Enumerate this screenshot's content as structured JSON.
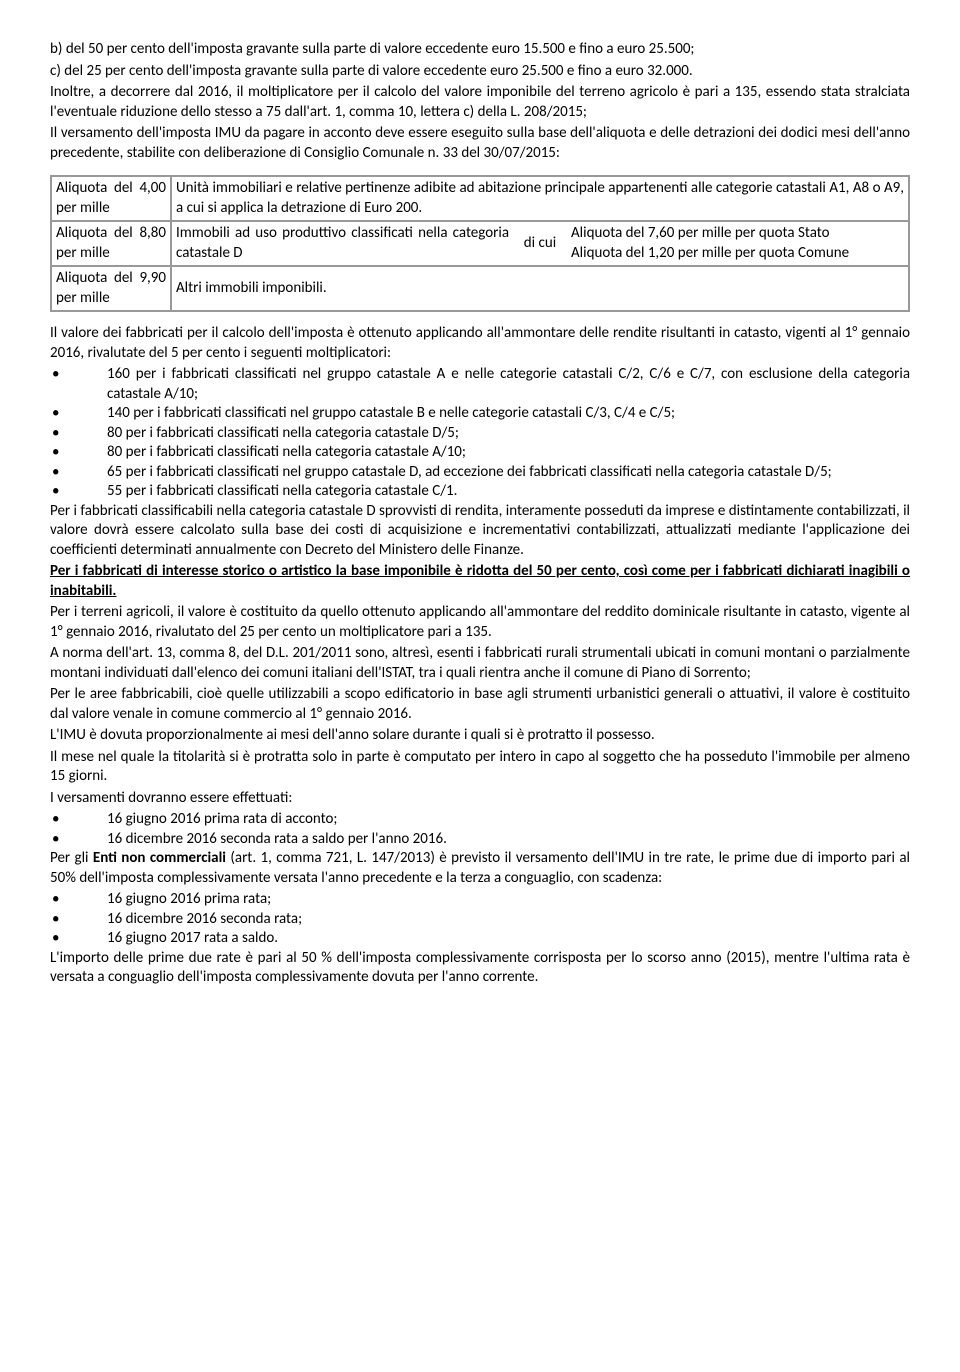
{
  "intro": {
    "b": "b) del 50 per cento dell'imposta gravante sulla parte di valore eccedente euro 15.500 e fino a euro 25.500;",
    "c": "c) del 25 per cento dell'imposta gravante sulla parte di valore eccedente euro 25.500 e fino a euro 32.000.",
    "p1": "Inoltre, a decorrere dal 2016, il moltiplicatore per il calcolo del valore imponibile del terreno agricolo è pari a 135, essendo stata stralciata l'eventuale riduzione dello stesso a 75 dall'art. 1, comma 10, lettera c) della L. 208/2015;",
    "p2": "Il versamento dell'imposta IMU da pagare in acconto deve essere eseguito sulla base dell'aliquota e delle detrazioni dei dodici mesi dell'anno precedente, stabilite con deliberazione di Consiglio Comunale n. 33 del 30/07/2015:"
  },
  "table": {
    "r1": {
      "label": "Aliquota del 4,00 per mille",
      "desc": "Unità immobiliari e relative pertinenze adibite ad abitazione principale appartenenti alle categorie catastali A1, A8 o A9, a cui si applica la detrazione di Euro 200."
    },
    "r2": {
      "label": "Aliquota del 8,80 per mille",
      "c1": "Immobili ad uso produttivo classificati nella categoria catastale D",
      "c2": "di cui",
      "c3a": "Aliquota del 7,60 per mille per quota Stato",
      "c3b": "Aliquota del 1,20 per mille per quota Comune"
    },
    "r3": {
      "label": "Aliquota del 9,90 per mille",
      "desc": "Altri immobili imponibili."
    }
  },
  "body": {
    "p3": "Il valore dei fabbricati per il calcolo dell'imposta è ottenuto applicando all'ammontare delle rendite risultanti in catasto, vigenti al 1° gennaio 2016, rivalutate del 5 per cento i seguenti moltiplicatori:",
    "b1": "160 per i fabbricati classificati nel gruppo catastale A e nelle categorie catastali C/2, C/6 e C/7, con esclusione della categoria catastale A/10;",
    "b2": "140 per i fabbricati classificati nel gruppo catastale B e nelle categorie catastali C/3, C/4 e C/5;",
    "b3": "80 per i fabbricati classificati nella categoria catastale D/5;",
    "b4": "80 per i fabbricati classificati nella categoria catastale A/10;",
    "b5": "65 per i fabbricati classificati nel gruppo catastale D, ad eccezione dei fabbricati classificati nella categoria catastale D/5;",
    "b6": "55 per i fabbricati classificati nella categoria catastale C/1.",
    "p4": "Per i fabbricati classificabili nella categoria catastale D sprovvisti di rendita, interamente posseduti da imprese e distintamente contabilizzati, il valore dovrà essere calcolato sulla base dei costi di acquisizione e incrementativi contabilizzati, attualizzati mediante l'applicazione dei coefficienti determinati annualmente con Decreto del Ministero delle Finanze.",
    "p5": "Per i fabbricati di interesse storico o artistico la base imponibile è ridotta del 50 per cento, così come per i fabbricati dichiarati inagibili o inabitabili.",
    "p6": "Per i terreni agricoli, il valore è costituito da quello ottenuto applicando all'ammontare del reddito dominicale risultante in catasto, vigente al 1° gennaio 2016, rivalutato del 25 per cento un moltiplicatore pari a 135.",
    "p7": "A norma dell'art. 13, comma 8, del D.L. 201/2011 sono, altresì, esenti i fabbricati rurali strumentali ubicati in comuni montani o parzialmente montani individuati dall'elenco dei comuni italiani dell'ISTAT, tra i quali rientra anche il comune di Piano di Sorrento;",
    "p8": "Per le aree fabbricabili, cioè quelle utilizzabili a scopo edificatorio in base agli strumenti urbanistici generali o attuativi, il valore è costituito dal valore venale in comune commercio al 1° gennaio 2016.",
    "p9": "L'IMU è dovuta proporzionalmente ai mesi dell'anno solare durante i quali si è protratto il possesso.",
    "p10": "Il mese nel quale la titolarità si è protratta solo in parte è computato per intero in capo al soggetto che ha posseduto l'immobile per almeno 15 giorni.",
    "p11": "I versamenti dovranno essere effettuati:",
    "b7": "16 giugno 2016 prima rata di acconto;",
    "b8": "16 dicembre 2016 seconda rata a saldo per l'anno 2016.",
    "p12a": " Per gli ",
    "p12b": "Enti non commerciali",
    "p12c": " (art. 1, comma 721, L. 147/2013) è previsto il versamento dell'IMU in tre rate, le prime due di importo pari al 50% dell'imposta complessivamente versata l'anno precedente e la terza a conguaglio, con scadenza:",
    "b9": "16 giugno 2016 prima rata;",
    "b10": "16 dicembre 2016 seconda rata;",
    "b11": "16 giugno 2017 rata a saldo.",
    "p13": "L'importo delle prime due rate è pari al 50 % dell'imposta complessivamente corrisposta per lo scorso anno (2015), mentre l'ultima rata è versata a conguaglio dell'imposta complessivamente dovuta per l'anno corrente."
  }
}
